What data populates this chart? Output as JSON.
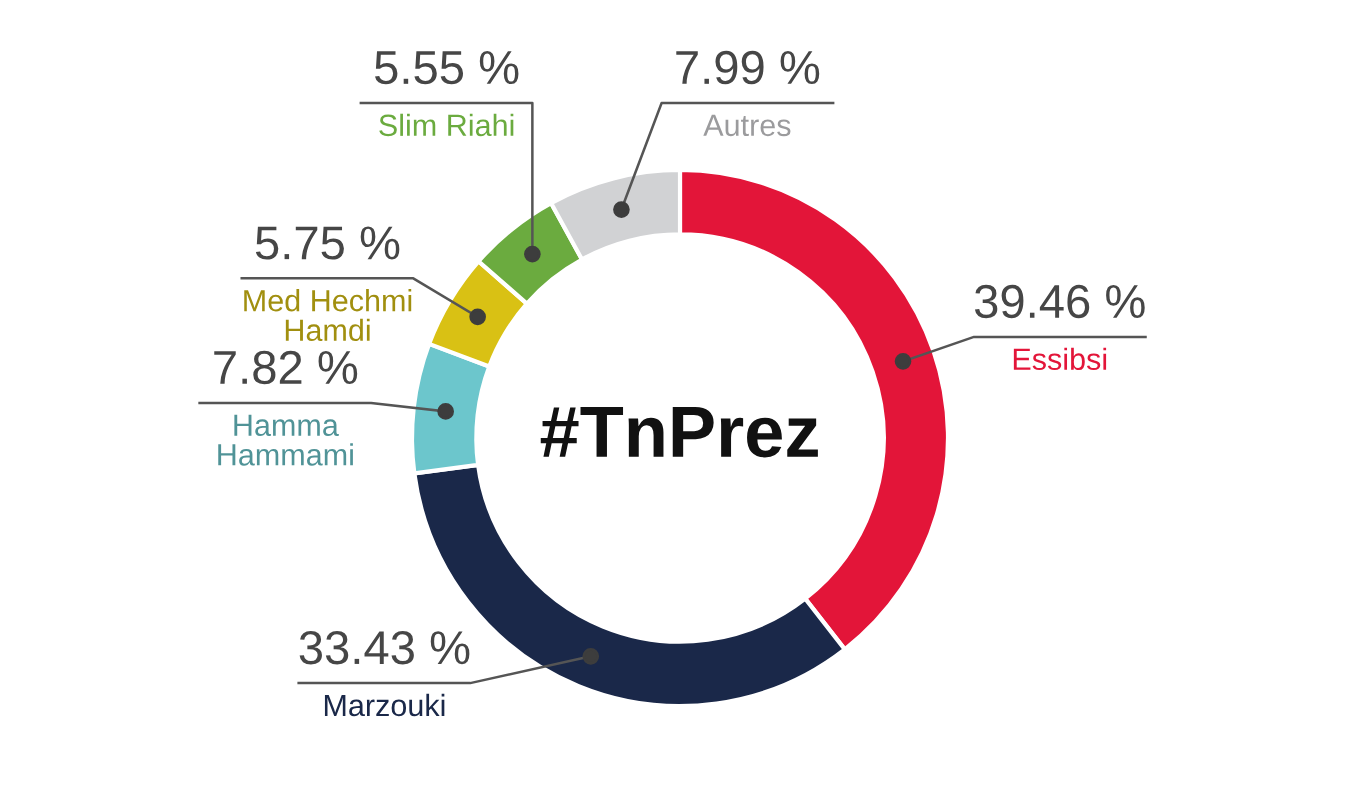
{
  "chart_data": {
    "type": "donut",
    "title": "#TnPrez",
    "categories": [
      "Essibsi",
      "Marzouki",
      "Hamma\nHammami",
      "Med Hechmi\nHamdi",
      "Slim Riahi",
      "Autres"
    ],
    "values": [
      39.46,
      33.43,
      7.82,
      5.75,
      5.55,
      7.99
    ],
    "colors": [
      "#e31539",
      "#1a2849",
      "#6cc6cc",
      "#d9c114",
      "#6bab3f",
      "#d1d2d4"
    ],
    "value_labels": [
      "39.46 %",
      "33.43 %",
      "7.82 %",
      "5.75 %",
      "5.55 %",
      "7.99 %"
    ]
  }
}
